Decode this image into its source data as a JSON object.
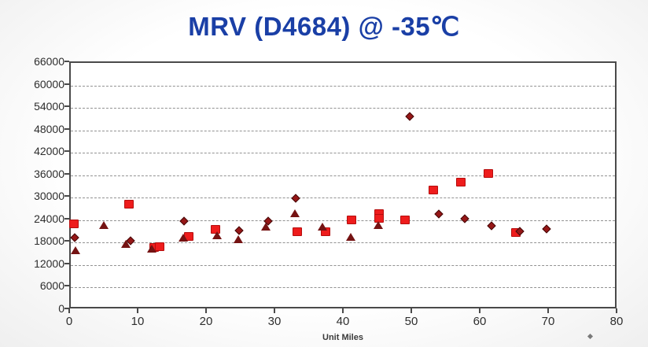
{
  "chart_data": {
    "type": "scatter",
    "title": "MRV (D4684) @ -35℃",
    "xlabel": "Unit Miles",
    "ylabel": "",
    "xlim": [
      0,
      80
    ],
    "ylim": [
      0,
      66000
    ],
    "xticks": [
      0,
      10,
      20,
      30,
      40,
      50,
      60,
      70,
      80
    ],
    "yticks": [
      0,
      6000,
      12000,
      18000,
      24000,
      30000,
      36000,
      42000,
      48000,
      54000,
      60000,
      66000
    ],
    "grid": "horizontal-dashed",
    "legend_position": "none",
    "series": [
      {
        "name": "red-square-samples",
        "marker": "square",
        "color": "#ee1c1c",
        "points": [
          [
            0.5,
            23000
          ],
          [
            8.5,
            28200
          ],
          [
            12.2,
            16700
          ],
          [
            13.0,
            16900
          ],
          [
            17.2,
            19700
          ],
          [
            21.2,
            21500
          ],
          [
            33.1,
            21000
          ],
          [
            37.2,
            21000
          ],
          [
            41.0,
            24000
          ],
          [
            45.0,
            25800
          ],
          [
            45.1,
            24500
          ],
          [
            48.9,
            24100
          ],
          [
            53.0,
            32000
          ],
          [
            57.0,
            34200
          ],
          [
            61.0,
            36500
          ],
          [
            65.0,
            20600
          ]
        ]
      },
      {
        "name": "dark-diamond-samples",
        "marker": "diamond",
        "color": "#961717",
        "points": [
          [
            0.6,
            19400
          ],
          [
            8.7,
            18600
          ],
          [
            16.5,
            23800
          ],
          [
            24.6,
            21300
          ],
          [
            28.8,
            23700
          ],
          [
            32.9,
            29800
          ],
          [
            49.5,
            51800
          ],
          [
            53.8,
            25700
          ],
          [
            57.6,
            24300
          ],
          [
            61.5,
            22500
          ],
          [
            65.6,
            21100
          ],
          [
            69.5,
            21700
          ]
        ]
      },
      {
        "name": "dark-triangle-samples",
        "marker": "triangle",
        "color": "#751313",
        "points": [
          [
            0.7,
            15900
          ],
          [
            4.8,
            22800
          ],
          [
            8.1,
            17600
          ],
          [
            11.8,
            16300
          ],
          [
            16.4,
            19400
          ],
          [
            21.4,
            20000
          ],
          [
            24.5,
            18900
          ],
          [
            28.5,
            22200
          ],
          [
            32.8,
            25900
          ],
          [
            36.8,
            22300
          ],
          [
            40.9,
            19600
          ],
          [
            44.9,
            22700
          ]
        ]
      }
    ]
  },
  "colors": {
    "title": "#1a3fa6",
    "axis_frame": "#4a4a4a",
    "gridline": "#7f7f7f",
    "tick_text": "#2e2e2e"
  }
}
